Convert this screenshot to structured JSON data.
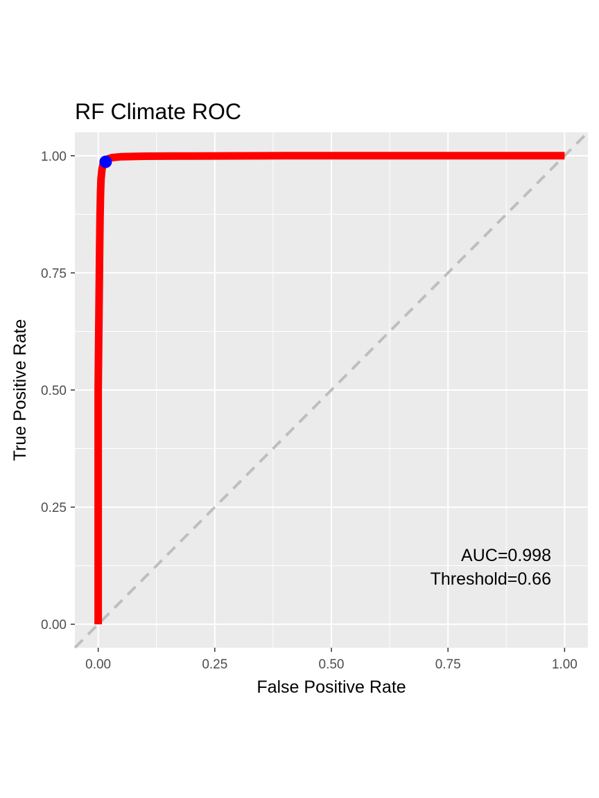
{
  "chart_data": {
    "type": "line",
    "title": "RF Climate ROC",
    "xlabel": "False Positive Rate",
    "ylabel": "True Positive Rate",
    "xlim": [
      -0.05,
      1.05
    ],
    "ylim": [
      -0.05,
      1.05
    ],
    "x_ticks": [
      0,
      0.25,
      0.5,
      0.75,
      1
    ],
    "y_ticks": [
      0,
      0.25,
      0.5,
      0.75,
      1
    ],
    "x_tick_labels": [
      "0.00",
      "0.25",
      "0.50",
      "0.75",
      "1.00"
    ],
    "y_tick_labels": [
      "0.00",
      "0.25",
      "0.50",
      "0.75",
      "1.00"
    ],
    "grid": true,
    "series": [
      {
        "color": "#ff0000",
        "x": [
          0,
          0.0,
          0.002,
          0.003,
          0.004,
          0.005,
          0.006,
          0.008,
          0.01,
          0.013,
          0.016,
          0.02,
          0.03,
          0.05,
          0.1,
          0.2,
          0.4,
          0.6,
          0.8,
          1.0
        ],
        "y": [
          0,
          0.5,
          0.7,
          0.8,
          0.87,
          0.92,
          0.95,
          0.97,
          0.98,
          0.985,
          0.99,
          0.993,
          0.996,
          0.998,
          0.999,
          0.9995,
          1.0,
          1.0,
          1.0,
          1.0
        ]
      }
    ],
    "reference_line": {
      "x": [
        -0.05,
        1.05
      ],
      "y": [
        -0.05,
        1.05
      ],
      "color": "#bebebe",
      "style": "dashed"
    },
    "optimal_point": {
      "x": 0.016,
      "y": 0.987,
      "color": "#0000ff"
    },
    "annotations": [
      "AUC=0.998",
      "Threshold=0.66"
    ]
  }
}
